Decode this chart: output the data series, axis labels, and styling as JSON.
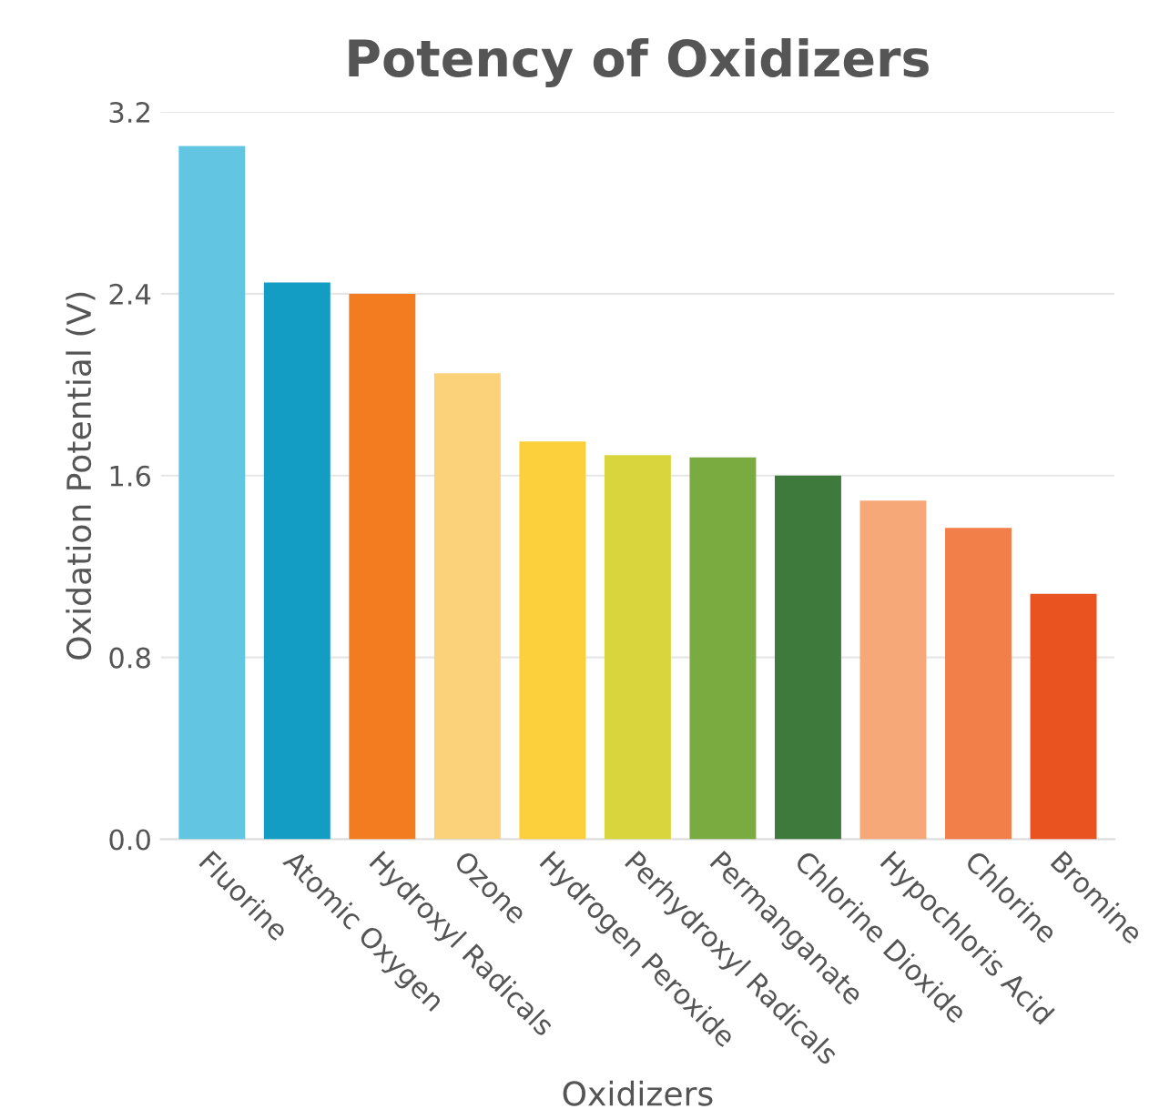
{
  "chart_data": {
    "type": "bar",
    "title": "Potency of Oxidizers",
    "xlabel": "Oxidizers",
    "ylabel": "Oxidation Potential (V)",
    "categories": [
      "Fluorine",
      "Atomic Oxygen",
      "Hydroxyl Radicals",
      "Ozone",
      "Hydrogen Peroxide",
      "Perhydroxyl Radicals",
      "Permanganate",
      "Chlorine Dioxide",
      "Hypochloris Acid",
      "Chlorine",
      "Bromine"
    ],
    "values": [
      3.05,
      2.45,
      2.4,
      2.05,
      1.75,
      1.69,
      1.68,
      1.6,
      1.49,
      1.37,
      1.08
    ],
    "colors": [
      "#62c6e2",
      "#139cc4",
      "#f47c20",
      "#fbd27a",
      "#fbd03c",
      "#d8d63c",
      "#7aab40",
      "#3e7a3c",
      "#f7a878",
      "#f27e4a",
      "#e8531f"
    ],
    "ylim": [
      0,
      3.2
    ],
    "yticks": [
      {
        "value": 0,
        "label": "0.0"
      },
      0.8,
      1.6,
      2.4,
      3.2
    ],
    "grid": "y"
  }
}
